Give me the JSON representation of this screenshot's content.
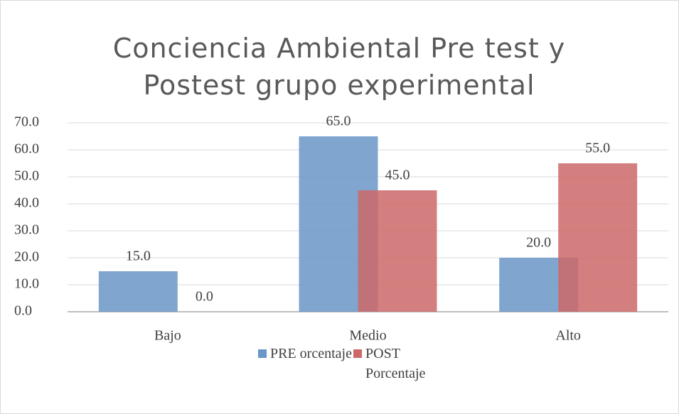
{
  "chart_data": {
    "type": "bar",
    "title": "Conciencia Ambiental Pre test y Postest grupo experimental",
    "categories": [
      "Bajo",
      "Medio",
      "Alto"
    ],
    "series": [
      {
        "name": "PRE orcentaje",
        "color": "#6a96c8",
        "values": [
          15,
          65,
          20
        ],
        "value_labels": [
          "15.0",
          "65.0",
          "20.0"
        ]
      },
      {
        "name": "POST Porcentaje",
        "color": "#cd6868",
        "values": [
          0,
          45,
          55
        ],
        "value_labels": [
          "0.0",
          "45.0",
          "55.0"
        ]
      }
    ],
    "ylim": [
      0,
      70
    ],
    "yticks": [
      {
        "value": 0,
        "label": "0.0"
      },
      {
        "value": 10,
        "label": "10.0"
      },
      {
        "value": 20,
        "label": "20.0"
      },
      {
        "value": 30,
        "label": "30.0"
      },
      {
        "value": 40,
        "label": "40.0"
      },
      {
        "value": 50,
        "label": "50.0"
      },
      {
        "value": 60,
        "label": "60.0"
      },
      {
        "value": 70,
        "label": "70.0"
      }
    ],
    "grid": true,
    "legend": "bottom"
  }
}
